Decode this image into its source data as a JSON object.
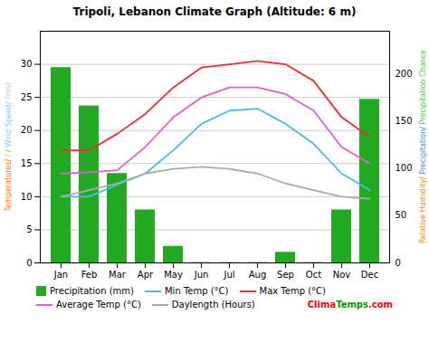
{
  "chart_data": {
    "type": "bar",
    "title": "Tripoli, Lebanon Climate Graph (Altitude: 6 m)",
    "categories": [
      "Jan",
      "Feb",
      "Mar",
      "Apr",
      "May",
      "Jun",
      "Jul",
      "Aug",
      "Sep",
      "Oct",
      "Nov",
      "Dec"
    ],
    "series": [
      {
        "name": "Precipitation (mm)",
        "type": "bar",
        "color": "#22aa22",
        "values": [
          29.5,
          23.7,
          13.5,
          8.0,
          2.5,
          0.05,
          0.05,
          0.05,
          1.6,
          0.05,
          8.0,
          24.7
        ]
      },
      {
        "name": "Min Temp (°C)",
        "type": "line",
        "color": "#4db8e8",
        "values": [
          10.0,
          10.0,
          11.8,
          13.5,
          17.0,
          21.0,
          23.0,
          23.3,
          21.0,
          18.0,
          13.5,
          11.0
        ]
      },
      {
        "name": "Max Temp (°C)",
        "type": "line",
        "color": "#e83030",
        "values": [
          17.0,
          17.0,
          19.5,
          22.5,
          26.5,
          29.5,
          30.0,
          30.5,
          30.0,
          27.5,
          22.0,
          19.0
        ]
      },
      {
        "name": "Average Temp (°C)",
        "type": "line",
        "color": "#e060d0",
        "values": [
          13.5,
          13.7,
          14.0,
          17.5,
          22.0,
          25.0,
          26.5,
          26.5,
          25.5,
          23.0,
          17.5,
          15.0
        ]
      },
      {
        "name": "Daylength (Hours)",
        "type": "line",
        "color": "#aaaaaa",
        "values": [
          10.0,
          11.0,
          12.0,
          13.5,
          14.2,
          14.5,
          14.2,
          13.5,
          12.0,
          11.0,
          10.0,
          9.7
        ]
      }
    ],
    "ylim": [
      0,
      35
    ],
    "yticks": [
      0,
      5,
      10,
      15,
      20,
      25,
      30
    ],
    "y2lim": [
      0,
      245
    ],
    "y2ticks": [
      0,
      50,
      100,
      150,
      200
    ],
    "ylabel": [
      {
        "text": "Temperatures/",
        "color": "#ff7700"
      },
      {
        "text": " /",
        "color": "#ffcc00"
      },
      {
        "text": " /",
        "color": "#88cc44"
      },
      {
        "text": " Wind Speed/",
        "color": "#88ccff"
      },
      {
        "text": " Frost",
        "color": "#cccccc"
      }
    ],
    "y2label": [
      {
        "text": "Relative Humidity/",
        "color": "#ff8800"
      },
      {
        "text": " Precipitation/",
        "color": "#4488ff"
      },
      {
        "text": " Precipitation Chance",
        "color": "#44cc44"
      }
    ],
    "grid": true,
    "legend": "bottom",
    "annotations": [
      {
        "text": "Clima",
        "color": "red"
      },
      {
        "text": "Temps",
        "color": "#009900"
      },
      {
        "text": ".com",
        "color": "red"
      }
    ]
  }
}
